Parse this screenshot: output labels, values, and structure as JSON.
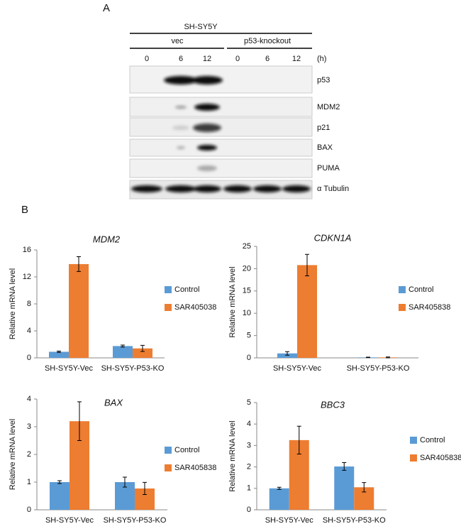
{
  "panel_a": {
    "label": "A",
    "cell_line": "SH-SY5Y",
    "groups": [
      "vec",
      "p53-knockout"
    ],
    "timepoints": [
      "0",
      "6",
      "12",
      "0",
      "6",
      "12"
    ],
    "time_unit": "(h)",
    "rows": [
      "p53",
      "MDM2",
      "p21",
      "BAX",
      "PUMA",
      "α Tubulin"
    ]
  },
  "panel_b": {
    "label": "B"
  },
  "chart_data": [
    {
      "type": "bar",
      "title": "MDM2",
      "y_label": "Relative mRNA level",
      "categories": [
        "SH-SY5Y-Vec",
        "SH-SY5Y-P53-KO"
      ],
      "series": [
        {
          "name": "Control",
          "color": "#5b9bd5",
          "values": [
            0.9,
            1.75
          ],
          "errors": [
            0.1,
            0.15
          ]
        },
        {
          "name": "SAR405038",
          "color": "#ed7d31",
          "values": [
            13.9,
            1.4
          ],
          "errors": [
            1.1,
            0.45
          ]
        }
      ],
      "ylim": [
        0,
        16
      ],
      "yticks": [
        0,
        4,
        8,
        12,
        16
      ]
    },
    {
      "type": "bar",
      "title": "CDKN1A",
      "y_label": "Relative mRNA level",
      "categories": [
        "SH-SY5Y-Vec",
        "SH-SY5Y-P53-KO"
      ],
      "series": [
        {
          "name": "Control",
          "color": "#5b9bd5",
          "values": [
            1.0,
            0.1
          ],
          "errors": [
            0.4,
            0.05
          ]
        },
        {
          "name": "SAR405838",
          "color": "#ed7d31",
          "values": [
            20.8,
            0.1
          ],
          "errors": [
            2.4,
            0.1
          ]
        }
      ],
      "ylim": [
        0,
        25
      ],
      "yticks": [
        0,
        5,
        10,
        15,
        20,
        25
      ]
    },
    {
      "type": "bar",
      "title": "BAX",
      "y_label": "Relative mRNA level",
      "categories": [
        "SH-SY5Y-Vec",
        "SH-SY5Y-P53-KO"
      ],
      "series": [
        {
          "name": "Control",
          "color": "#5b9bd5",
          "values": [
            1.0,
            1.0
          ],
          "errors": [
            0.05,
            0.18
          ]
        },
        {
          "name": "SAR405838",
          "color": "#ed7d31",
          "values": [
            3.2,
            0.77
          ],
          "errors": [
            0.7,
            0.22
          ]
        }
      ],
      "ylim": [
        0,
        4
      ],
      "yticks": [
        0,
        1,
        2,
        3,
        4
      ]
    },
    {
      "type": "bar",
      "title": "BBC3",
      "y_label": "Relative mRNA level",
      "categories": [
        "SH-SY5Y-Vec",
        "SH-SY5Y-P53-KO"
      ],
      "series": [
        {
          "name": "Control",
          "color": "#5b9bd5",
          "values": [
            1.0,
            2.02
          ],
          "errors": [
            0.05,
            0.18
          ]
        },
        {
          "name": "SAR405838",
          "color": "#ed7d31",
          "values": [
            3.25,
            1.05
          ],
          "errors": [
            0.65,
            0.22
          ]
        }
      ],
      "ylim": [
        0,
        5
      ],
      "yticks": [
        0,
        1,
        2,
        3,
        4,
        5
      ]
    }
  ]
}
